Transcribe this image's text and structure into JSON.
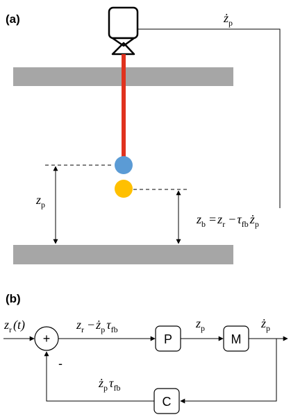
{
  "panel_a": {
    "label": "(a)",
    "feedback_label": [
      {
        "text": "ż",
        "sub": "p"
      }
    ],
    "gap_label": [
      {
        "text": "z",
        "sub": "p"
      }
    ],
    "equation": [
      {
        "text": "z",
        "sub": "b"
      },
      {
        "text": "="
      },
      {
        "text": "z",
        "sub": "r"
      },
      {
        "text": "−"
      },
      {
        "text": "τ",
        "sub": "fb"
      },
      {
        "text": "ż",
        "sub": "p"
      }
    ]
  },
  "panel_b": {
    "label": "(b)",
    "input": [
      {
        "text": "z",
        "sub": "r"
      },
      {
        "text": "(t)"
      }
    ],
    "sum_sign": "+",
    "minus_sign": "-",
    "error": [
      {
        "text": "z",
        "sub": "r"
      },
      {
        "text": "−"
      },
      {
        "text": "ż",
        "sub": "p"
      },
      {
        "text": "τ",
        "sub": "fb"
      }
    ],
    "blocks": {
      "p": "P",
      "m": "M",
      "c": "C"
    },
    "p_out": [
      {
        "text": "z",
        "sub": "p"
      }
    ],
    "m_out": [
      {
        "text": "ż",
        "sub": "p"
      }
    ],
    "feedback": [
      {
        "text": "ż",
        "sub": "p"
      },
      {
        "text": "τ",
        "sub": "fb"
      }
    ]
  }
}
